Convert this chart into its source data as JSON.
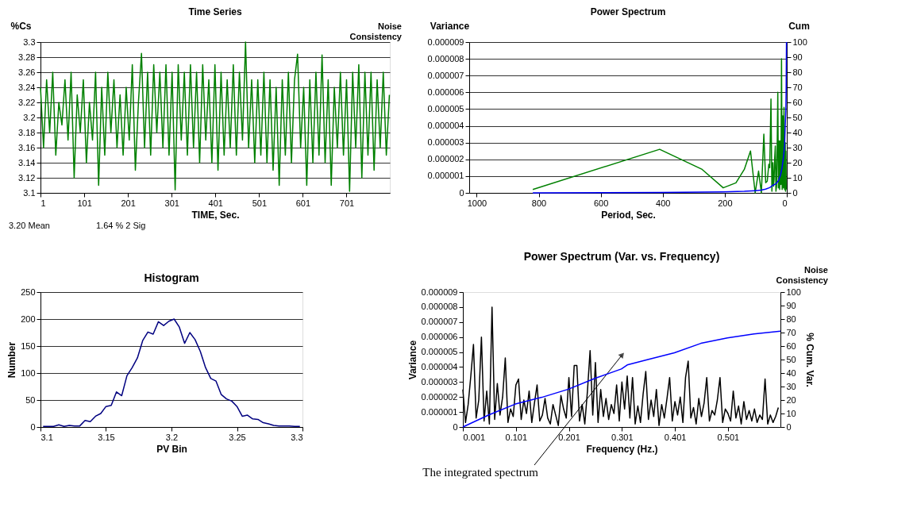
{
  "chart_data": [
    {
      "type": "line",
      "title": "Time Series",
      "xlabel": "TIME, Sec.",
      "ylabel": "%Cs",
      "grid": "y",
      "xlim": [
        1,
        800
      ],
      "xticks": [
        1,
        101,
        201,
        301,
        401,
        501,
        601,
        701
      ],
      "ylim": [
        3.1,
        3.3
      ],
      "yticks": [
        3.1,
        3.12,
        3.14,
        3.16,
        3.18,
        3.2,
        3.22,
        3.24,
        3.26,
        3.28,
        3.3
      ],
      "annotations": [
        "Noise Consistency",
        "3.20 Mean",
        "1.64 % 2 Sig"
      ],
      "series": [
        {
          "color": "#008000",
          "x": [
            1,
            8,
            15,
            22,
            29,
            36,
            43,
            50,
            57,
            64,
            71,
            78,
            85,
            92,
            99,
            106,
            113,
            120,
            127,
            134,
            141,
            148,
            155,
            162,
            169,
            176,
            183,
            190,
            197,
            204,
            211,
            218,
            225,
            232,
            239,
            246,
            253,
            260,
            267,
            274,
            281,
            288,
            295,
            302,
            309,
            316,
            323,
            330,
            337,
            344,
            351,
            358,
            365,
            372,
            379,
            386,
            393,
            400,
            407,
            414,
            421,
            428,
            435,
            442,
            449,
            456,
            463,
            470,
            477,
            484,
            491,
            498,
            505,
            512,
            519,
            526,
            533,
            540,
            547,
            554,
            561,
            568,
            575,
            582,
            589,
            596,
            603,
            610,
            617,
            624,
            631,
            638,
            645,
            652,
            659,
            666,
            673,
            680,
            687,
            694,
            701,
            708,
            715,
            722,
            729,
            736,
            743,
            750,
            757,
            764,
            771,
            778,
            785,
            792,
            799
          ],
          "values": [
            3.24,
            3.16,
            3.25,
            3.18,
            3.26,
            3.15,
            3.22,
            3.19,
            3.25,
            3.17,
            3.26,
            3.12,
            3.23,
            3.18,
            3.25,
            3.14,
            3.22,
            3.17,
            3.26,
            3.11,
            3.24,
            3.15,
            3.26,
            3.18,
            3.25,
            3.16,
            3.23,
            3.15,
            3.24,
            3.17,
            3.27,
            3.13,
            3.22,
            3.285,
            3.16,
            3.26,
            3.15,
            3.27,
            3.18,
            3.26,
            3.16,
            3.27,
            3.15,
            3.26,
            3.104,
            3.27,
            3.17,
            3.26,
            3.15,
            3.27,
            3.16,
            3.26,
            3.14,
            3.27,
            3.17,
            3.25,
            3.14,
            3.27,
            3.13,
            3.26,
            3.15,
            3.25,
            3.16,
            3.27,
            3.15,
            3.26,
            3.17,
            3.3,
            3.16,
            3.25,
            3.14,
            3.25,
            3.15,
            3.26,
            3.14,
            3.25,
            3.13,
            3.24,
            3.11,
            3.25,
            3.15,
            3.26,
            3.14,
            3.25,
            3.284,
            3.16,
            3.24,
            3.11,
            3.25,
            3.14,
            3.26,
            3.15,
            3.283,
            3.14,
            3.25,
            3.11,
            3.24,
            3.16,
            3.26,
            3.15,
            3.25,
            3.102,
            3.26,
            3.16,
            3.27,
            3.12,
            3.26,
            3.15,
            3.26,
            3.13,
            3.25,
            3.16,
            3.26,
            3.15,
            3.23
          ]
        }
      ]
    },
    {
      "type": "line",
      "title": "Power Spectrum",
      "xlabel": "Period, Sec.",
      "ylabel": "Variance",
      "y2label": "Cum",
      "grid": "y",
      "xlim": [
        1024,
        0
      ],
      "xticks": [
        1000,
        800,
        600,
        400,
        200,
        0
      ],
      "ylim": [
        0,
        9e-06
      ],
      "yticks": [
        0,
        {
          "value": 1e-06,
          "label": "0.000001"
        },
        {
          "value": 2e-06,
          "label": "0.000002"
        },
        {
          "value": 3e-06,
          "label": "0.000003"
        },
        {
          "value": 4e-06,
          "label": "0.000004"
        },
        {
          "value": 5e-06,
          "label": "0.000005"
        },
        {
          "value": 6e-06,
          "label": "0.000006"
        },
        {
          "value": 7e-06,
          "label": "0.000007"
        },
        {
          "value": 8e-06,
          "label": "0.000008"
        },
        {
          "value": 9e-06,
          "label": "0.000009"
        }
      ],
      "y2lim": [
        0,
        100
      ],
      "y2ticks": [
        0,
        10,
        20,
        30,
        40,
        50,
        60,
        70,
        80,
        90,
        100
      ],
      "series": [
        {
          "color": "#008000",
          "x": [
            819,
            410,
            273,
            205,
            164,
            137,
            117,
            102,
            91,
            82,
            74,
            68,
            63,
            58,
            55,
            51,
            48,
            45,
            43,
            41,
            39,
            37,
            35,
            33,
            31,
            29,
            27,
            25,
            23,
            21,
            19,
            17,
            15,
            13,
            11,
            9,
            7,
            5,
            4,
            3,
            2
          ],
          "values": [
            2e-07,
            2.6e-06,
            1.4e-06,
            3e-07,
            6e-07,
            1.4e-06,
            2.5e-06,
            0,
            1.3e-06,
            0,
            3.5e-06,
            6e-07,
            7e-07,
            1.7e-06,
            1.5e-06,
            5.6e-06,
            1e-07,
            1.8e-06,
            4e-07,
            8e-07,
            2.1e-06,
            2.8e-06,
            1e-07,
            4e-07,
            2.8e-06,
            6e-06,
            3e-07,
            3.1e-06,
            2e-07,
            3.1e-06,
            5e-07,
            8e-06,
            2e-07,
            4.6e-06,
            3e-07,
            5.1e-06,
            2e-07,
            3e-06,
            1e-07,
            2.5e-06,
            2e-07
          ]
        },
        {
          "color": "#0000ff",
          "axis": "y2",
          "x": [
            819,
            410,
            205,
            137,
            100,
            82,
            68,
            55,
            45,
            35,
            27,
            20,
            15,
            10,
            7,
            5,
            3,
            2,
            1.5,
            1
          ],
          "values": [
            0,
            0.3,
            0.6,
            1,
            1.5,
            1.8,
            2.5,
            3.5,
            5,
            6,
            8,
            12,
            17,
            25,
            32,
            45,
            55,
            70,
            85,
            100
          ]
        }
      ]
    },
    {
      "type": "line",
      "title": "Histogram",
      "xlabel": "PV Bin",
      "ylabel": "Number",
      "grid": "y",
      "xlim": [
        3.1,
        3.3
      ],
      "xticks": [
        3.1,
        3.15,
        3.2,
        3.25,
        3.3
      ],
      "ylim": [
        0,
        250
      ],
      "yticks": [
        0,
        50,
        100,
        150,
        200,
        250
      ],
      "series": [
        {
          "color": "#000080",
          "x": [
            3.102,
            3.106,
            3.11,
            3.114,
            3.118,
            3.122,
            3.126,
            3.13,
            3.134,
            3.138,
            3.142,
            3.146,
            3.15,
            3.154,
            3.158,
            3.162,
            3.166,
            3.17,
            3.174,
            3.178,
            3.182,
            3.186,
            3.19,
            3.194,
            3.198,
            3.202,
            3.206,
            3.21,
            3.214,
            3.218,
            3.222,
            3.226,
            3.23,
            3.234,
            3.238,
            3.242,
            3.246,
            3.25,
            3.254,
            3.258,
            3.262,
            3.266,
            3.27,
            3.274,
            3.278,
            3.282,
            3.286,
            3.29,
            3.294,
            3.298
          ],
          "values": [
            1,
            1,
            1,
            4,
            1,
            3,
            2,
            2,
            12,
            10,
            20,
            25,
            38,
            40,
            65,
            58,
            95,
            110,
            128,
            160,
            176,
            172,
            195,
            188,
            196,
            200,
            185,
            155,
            175,
            162,
            140,
            110,
            90,
            85,
            60,
            52,
            48,
            38,
            20,
            22,
            15,
            14,
            8,
            6,
            3,
            2,
            2,
            2,
            1,
            1
          ]
        }
      ]
    },
    {
      "type": "line",
      "title": "Power Spectrum (Var. vs. Frequency)",
      "xlabel": "Frequency (Hz.)",
      "ylabel": "Variance",
      "y2label": "% Cum. Var.",
      "xlim": [
        0.001,
        0.6
      ],
      "xticks": [
        0.001,
        0.101,
        0.201,
        0.301,
        0.401,
        0.501
      ],
      "ylim": [
        0,
        9e-06
      ],
      "yticks": [
        0,
        {
          "value": 1e-06,
          "label": "0.000001"
        },
        {
          "value": 2e-06,
          "label": "0.000002"
        },
        {
          "value": 3e-06,
          "label": "0.000003"
        },
        {
          "value": 4e-06,
          "label": "0.000004"
        },
        {
          "value": 5e-06,
          "label": "0.000005"
        },
        {
          "value": 6e-06,
          "label": "0.000006"
        },
        {
          "value": 7e-06,
          "label": "0.000007"
        },
        {
          "value": 8e-06,
          "label": "0.000008"
        },
        {
          "value": 9e-06,
          "label": "0.000009"
        }
      ],
      "y2lim": [
        0,
        100
      ],
      "y2ticks": [
        0,
        10,
        20,
        30,
        40,
        50,
        60,
        70,
        80,
        90,
        100
      ],
      "annotations": [
        "Noise Consistency",
        "The integrated spectrum"
      ],
      "series": [
        {
          "color": "#000000",
          "x": [
            0.001,
            0.006,
            0.011,
            0.016,
            0.021,
            0.026,
            0.031,
            0.036,
            0.041,
            0.046,
            0.051,
            0.056,
            0.061,
            0.066,
            0.071,
            0.076,
            0.081,
            0.086,
            0.091,
            0.096,
            0.101,
            0.106,
            0.111,
            0.116,
            0.121,
            0.126,
            0.131,
            0.136,
            0.141,
            0.146,
            0.151,
            0.156,
            0.161,
            0.166,
            0.171,
            0.176,
            0.181,
            0.186,
            0.191,
            0.196,
            0.201,
            0.206,
            0.211,
            0.216,
            0.221,
            0.226,
            0.231,
            0.236,
            0.241,
            0.246,
            0.251,
            0.256,
            0.261,
            0.266,
            0.271,
            0.276,
            0.281,
            0.286,
            0.291,
            0.296,
            0.301,
            0.306,
            0.311,
            0.316,
            0.321,
            0.326,
            0.331,
            0.336,
            0.341,
            0.346,
            0.351,
            0.356,
            0.361,
            0.366,
            0.371,
            0.376,
            0.381,
            0.386,
            0.391,
            0.396,
            0.401,
            0.406,
            0.411,
            0.416,
            0.421,
            0.426,
            0.431,
            0.436,
            0.441,
            0.446,
            0.451,
            0.456,
            0.461,
            0.466,
            0.471,
            0.476,
            0.481,
            0.486,
            0.491,
            0.496,
            0.501,
            0.506,
            0.511,
            0.516,
            0.521,
            0.526,
            0.531,
            0.536,
            0.541,
            0.546,
            0.551,
            0.556,
            0.561,
            0.566,
            0.571,
            0.576,
            0.581,
            0.586,
            0.591,
            0.596
          ],
          "values": [
            2.5e-06,
            3e-07,
            1.5e-06,
            3.4e-06,
            5.5e-06,
            6e-07,
            1.8e-06,
            6e-06,
            4e-07,
            2.4e-06,
            2e-07,
            8e-06,
            5e-07,
            2.9e-06,
            8e-07,
            2e-06,
            4.6e-06,
            3e-07,
            1.2e-06,
            7e-07,
            2.8e-06,
            3.2e-06,
            5e-07,
            1.8e-06,
            9e-07,
            2.4e-06,
            3e-07,
            1.6e-06,
            2.8e-06,
            4e-07,
            8e-07,
            1.9e-06,
            6e-07,
            2e-07,
            1.5e-06,
            8e-07,
            1e-07,
            2.1e-06,
            1.2e-06,
            6e-07,
            3.3e-06,
            7e-07,
            4.1e-06,
            4.1e-06,
            4e-07,
            1.5e-06,
            2e-07,
            2.4e-06,
            5.1e-06,
            8e-07,
            4.3e-06,
            3e-07,
            2.5e-06,
            7e-07,
            1.9e-06,
            5e-07,
            1.5e-06,
            9e-07,
            2.8e-06,
            4e-07,
            3e-06,
            1.2e-06,
            3.4e-06,
            6e-07,
            3.3e-06,
            2e-07,
            1.4e-06,
            3e-07,
            2.2e-06,
            3.7e-06,
            5e-07,
            1.8e-06,
            7e-07,
            2.5e-06,
            1e-07,
            1.5e-06,
            6e-07,
            1.9e-06,
            3.3e-06,
            4e-07,
            1.7e-06,
            8e-07,
            2e-06,
            3e-07,
            3.3e-06,
            4.4e-06,
            6e-07,
            1.3e-06,
            2e-07,
            1.9e-06,
            7e-07,
            1.6e-06,
            3.3e-06,
            4e-07,
            1.1e-06,
            8e-07,
            1.8e-06,
            3.3e-06,
            3e-07,
            1.2e-06,
            9e-07,
            4e-07,
            2.4e-06,
            6e-07,
            1.4e-06,
            2e-07,
            1.7e-06,
            5e-07,
            1.1e-06,
            4e-07,
            1.2e-06,
            3e-07,
            8e-07,
            5e-07,
            3.2e-06,
            2e-07,
            8e-07,
            3e-07,
            7e-07,
            1.3e-06
          ]
        },
        {
          "color": "#0000ff",
          "axis": "y2",
          "x": [
            0.001,
            0.05,
            0.1,
            0.15,
            0.2,
            0.25,
            0.3,
            0.311,
            0.35,
            0.4,
            0.45,
            0.5,
            0.55,
            0.6
          ],
          "values": [
            0,
            9,
            17,
            22,
            28,
            36,
            43,
            46,
            50,
            55,
            62,
            66,
            69,
            71
          ]
        }
      ]
    }
  ]
}
